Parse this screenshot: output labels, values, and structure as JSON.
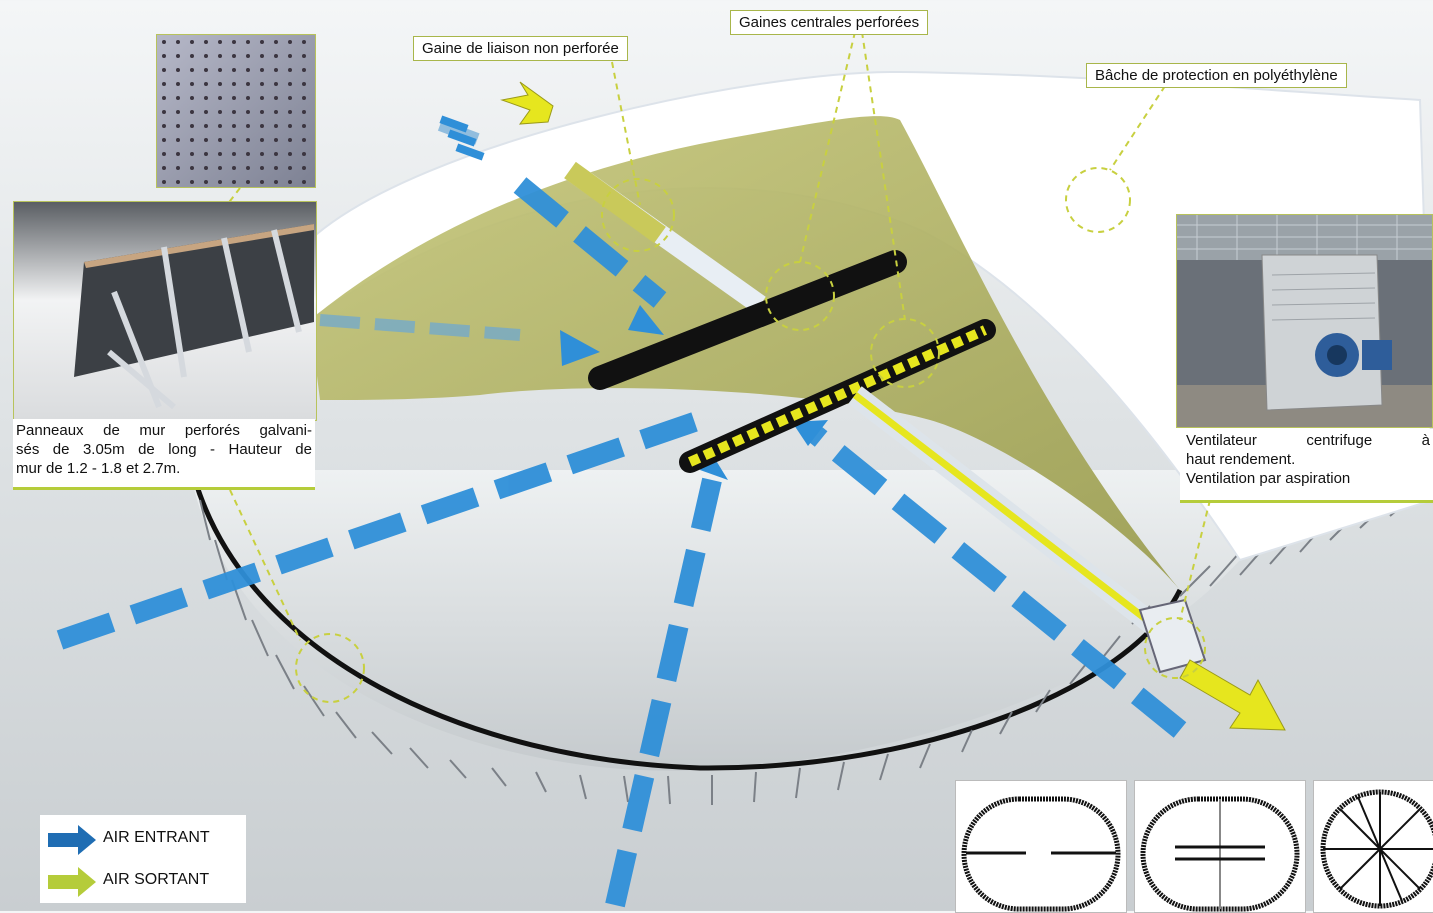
{
  "labels": {
    "gaine_liaison": "Gaine de liaison non perforée",
    "gaines_centrales": "Gaines centrales perforées",
    "bache": "Bâche de protection en polyéthylène"
  },
  "panel_caption": {
    "lines": [
      "Panneaux de mur perforés galvani-",
      "sés de 3.05m de long - Hauteur de",
      "mur de 1.2 - 1.8 et 2.7m."
    ]
  },
  "fan_caption": {
    "lines": [
      "Ventilateur centrifuge à",
      "haut rendement.",
      "Ventilation par aspiration"
    ]
  },
  "legend": {
    "items": [
      {
        "label": "AIR ENTRANT",
        "color": "#1f6db3"
      },
      {
        "label": "AIR SORTANT",
        "color": "#b5cc3a"
      }
    ]
  },
  "colors": {
    "air_in": "#2f8fd8",
    "air_out": "#e6e61e",
    "callout_border": "#a8b64a",
    "cover": "#a6a85a"
  }
}
